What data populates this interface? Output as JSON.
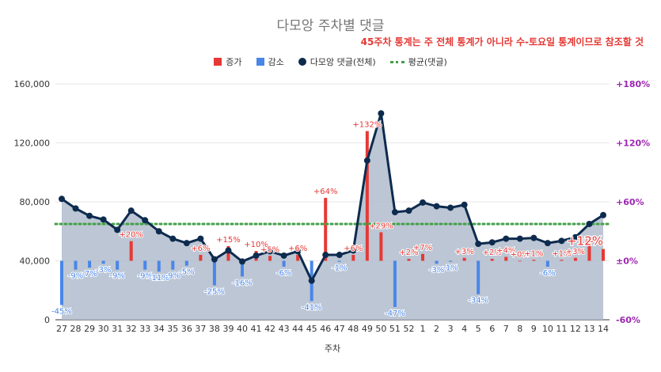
{
  "chart_data": {
    "type": "bar+line",
    "title": "다모앙 주차별 댓글",
    "subtitle": "45주차 통계는 주 전체 통계가 아니라 수-토요일 통계이므로 참조할 것",
    "xlabel": "주차",
    "categories": [
      "27",
      "28",
      "29",
      "30",
      "31",
      "32",
      "33",
      "34",
      "35",
      "36",
      "37",
      "38",
      "39",
      "40",
      "41",
      "42",
      "43",
      "44",
      "45",
      "46",
      "47",
      "48",
      "49",
      "50",
      "51",
      "52",
      "1",
      "2",
      "3",
      "4",
      "5",
      "6",
      "7",
      "8",
      "9",
      "10",
      "11",
      "12",
      "13",
      "14"
    ],
    "left_axis": {
      "ylim": [
        0,
        160000
      ],
      "ticks": [
        "0",
        "40,000",
        "80,000",
        "120,000",
        "160,000"
      ],
      "tick_values": [
        0,
        40000,
        80000,
        120000,
        160000
      ]
    },
    "right_axis": {
      "ylim": [
        -60,
        180
      ],
      "ticks": [
        "-60%",
        "±0%",
        "+60%",
        "+120%",
        "+180%"
      ],
      "tick_values": [
        -60,
        0,
        60,
        120,
        180
      ]
    },
    "legend": [
      "증가",
      "감소",
      "다모앙 댓글(전체)",
      "평균(댓글)"
    ],
    "colors": {
      "increase": "#e53935",
      "decrease": "#4a86e8",
      "line": "#0d2b4e",
      "area": "#b0bccc",
      "average": "#43a047",
      "right_axis": "#9c27b0"
    },
    "comments": [
      82000,
      75500,
      70500,
      68000,
      61000,
      74000,
      67500,
      60000,
      55000,
      52000,
      55000,
      41000,
      47000,
      39500,
      43500,
      46500,
      43500,
      46500,
      26500,
      44000,
      44000,
      47000,
      108000,
      140000,
      73000,
      74000,
      79500,
      77000,
      76000,
      78000,
      51500,
      52500,
      55000,
      55000,
      55500,
      52000,
      53500,
      56000,
      65000,
      71000
    ],
    "average": 65000,
    "pct_change": [
      -45,
      -9,
      -7,
      -3,
      -9,
      20,
      -9,
      -11,
      -9,
      -5,
      6,
      -25,
      15,
      -16,
      10,
      5,
      -6,
      6,
      -41,
      64,
      -1,
      6,
      132,
      29,
      -47,
      2,
      7,
      -3,
      -1,
      3,
      -34,
      2,
      4,
      0,
      1,
      -6,
      1,
      3,
      15,
      12
    ],
    "pct_labels": [
      "-45%",
      "-9%",
      "-7%",
      "-3%",
      "-9%",
      "+20%",
      "-9%",
      "-11%",
      "-9%",
      "-5%",
      "+6%",
      "-25%",
      "+15%",
      "-16%",
      "+10%",
      "+5%",
      "-6%",
      "+6%",
      "-41%",
      "+64%",
      "-1%",
      "+6%",
      "+132%",
      "+29%",
      "-47%",
      "+2%",
      "+7%",
      "-3%",
      "-1%",
      "+3%",
      "-34%",
      "+2%",
      "+4%",
      "+0%",
      "+1%",
      "-6%",
      "+1%",
      "+3%",
      "+15%",
      "+12%"
    ]
  }
}
